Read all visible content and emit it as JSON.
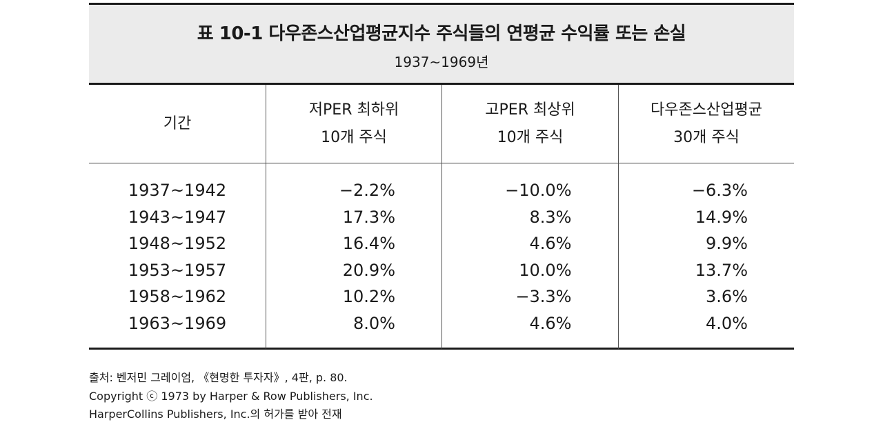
{
  "table": {
    "title": "표 10-1  다우존스산업평균지수 주식들의 연평균 수익률 또는 손실",
    "subtitle": "1937~1969년",
    "headers": [
      {
        "line1": "기간",
        "line2": ""
      },
      {
        "line1": "저PER 최하위",
        "line2": "10개 주식"
      },
      {
        "line1": "고PER 최상위",
        "line2": "10개 주식"
      },
      {
        "line1": "다우존스산업평균",
        "line2": "30개 주식"
      }
    ],
    "periods": [
      "1937~1942",
      "1943~1947",
      "1948~1952",
      "1953~1957",
      "1958~1962",
      "1963~1969"
    ],
    "low_per": [
      "−2.2%",
      "17.3%",
      "16.4%",
      "20.9%",
      "10.2%",
      "8.0%"
    ],
    "high_per": [
      "−10.0%",
      "8.3%",
      "4.6%",
      "10.0%",
      "−3.3%",
      "4.6%"
    ],
    "djia": [
      "−6.3%",
      "14.9%",
      "9.9%",
      "13.7%",
      "3.6%",
      "4.0%"
    ]
  },
  "footer": {
    "source": "출처: 벤저민 그레이엄, 《현명한 투자자》, 4판, p. 80.",
    "copyright": "Copyright ⓒ 1973 by Harper & Row Publishers, Inc.",
    "permission": "HarperCollins Publishers, Inc.의 허가를 받아 전재"
  }
}
